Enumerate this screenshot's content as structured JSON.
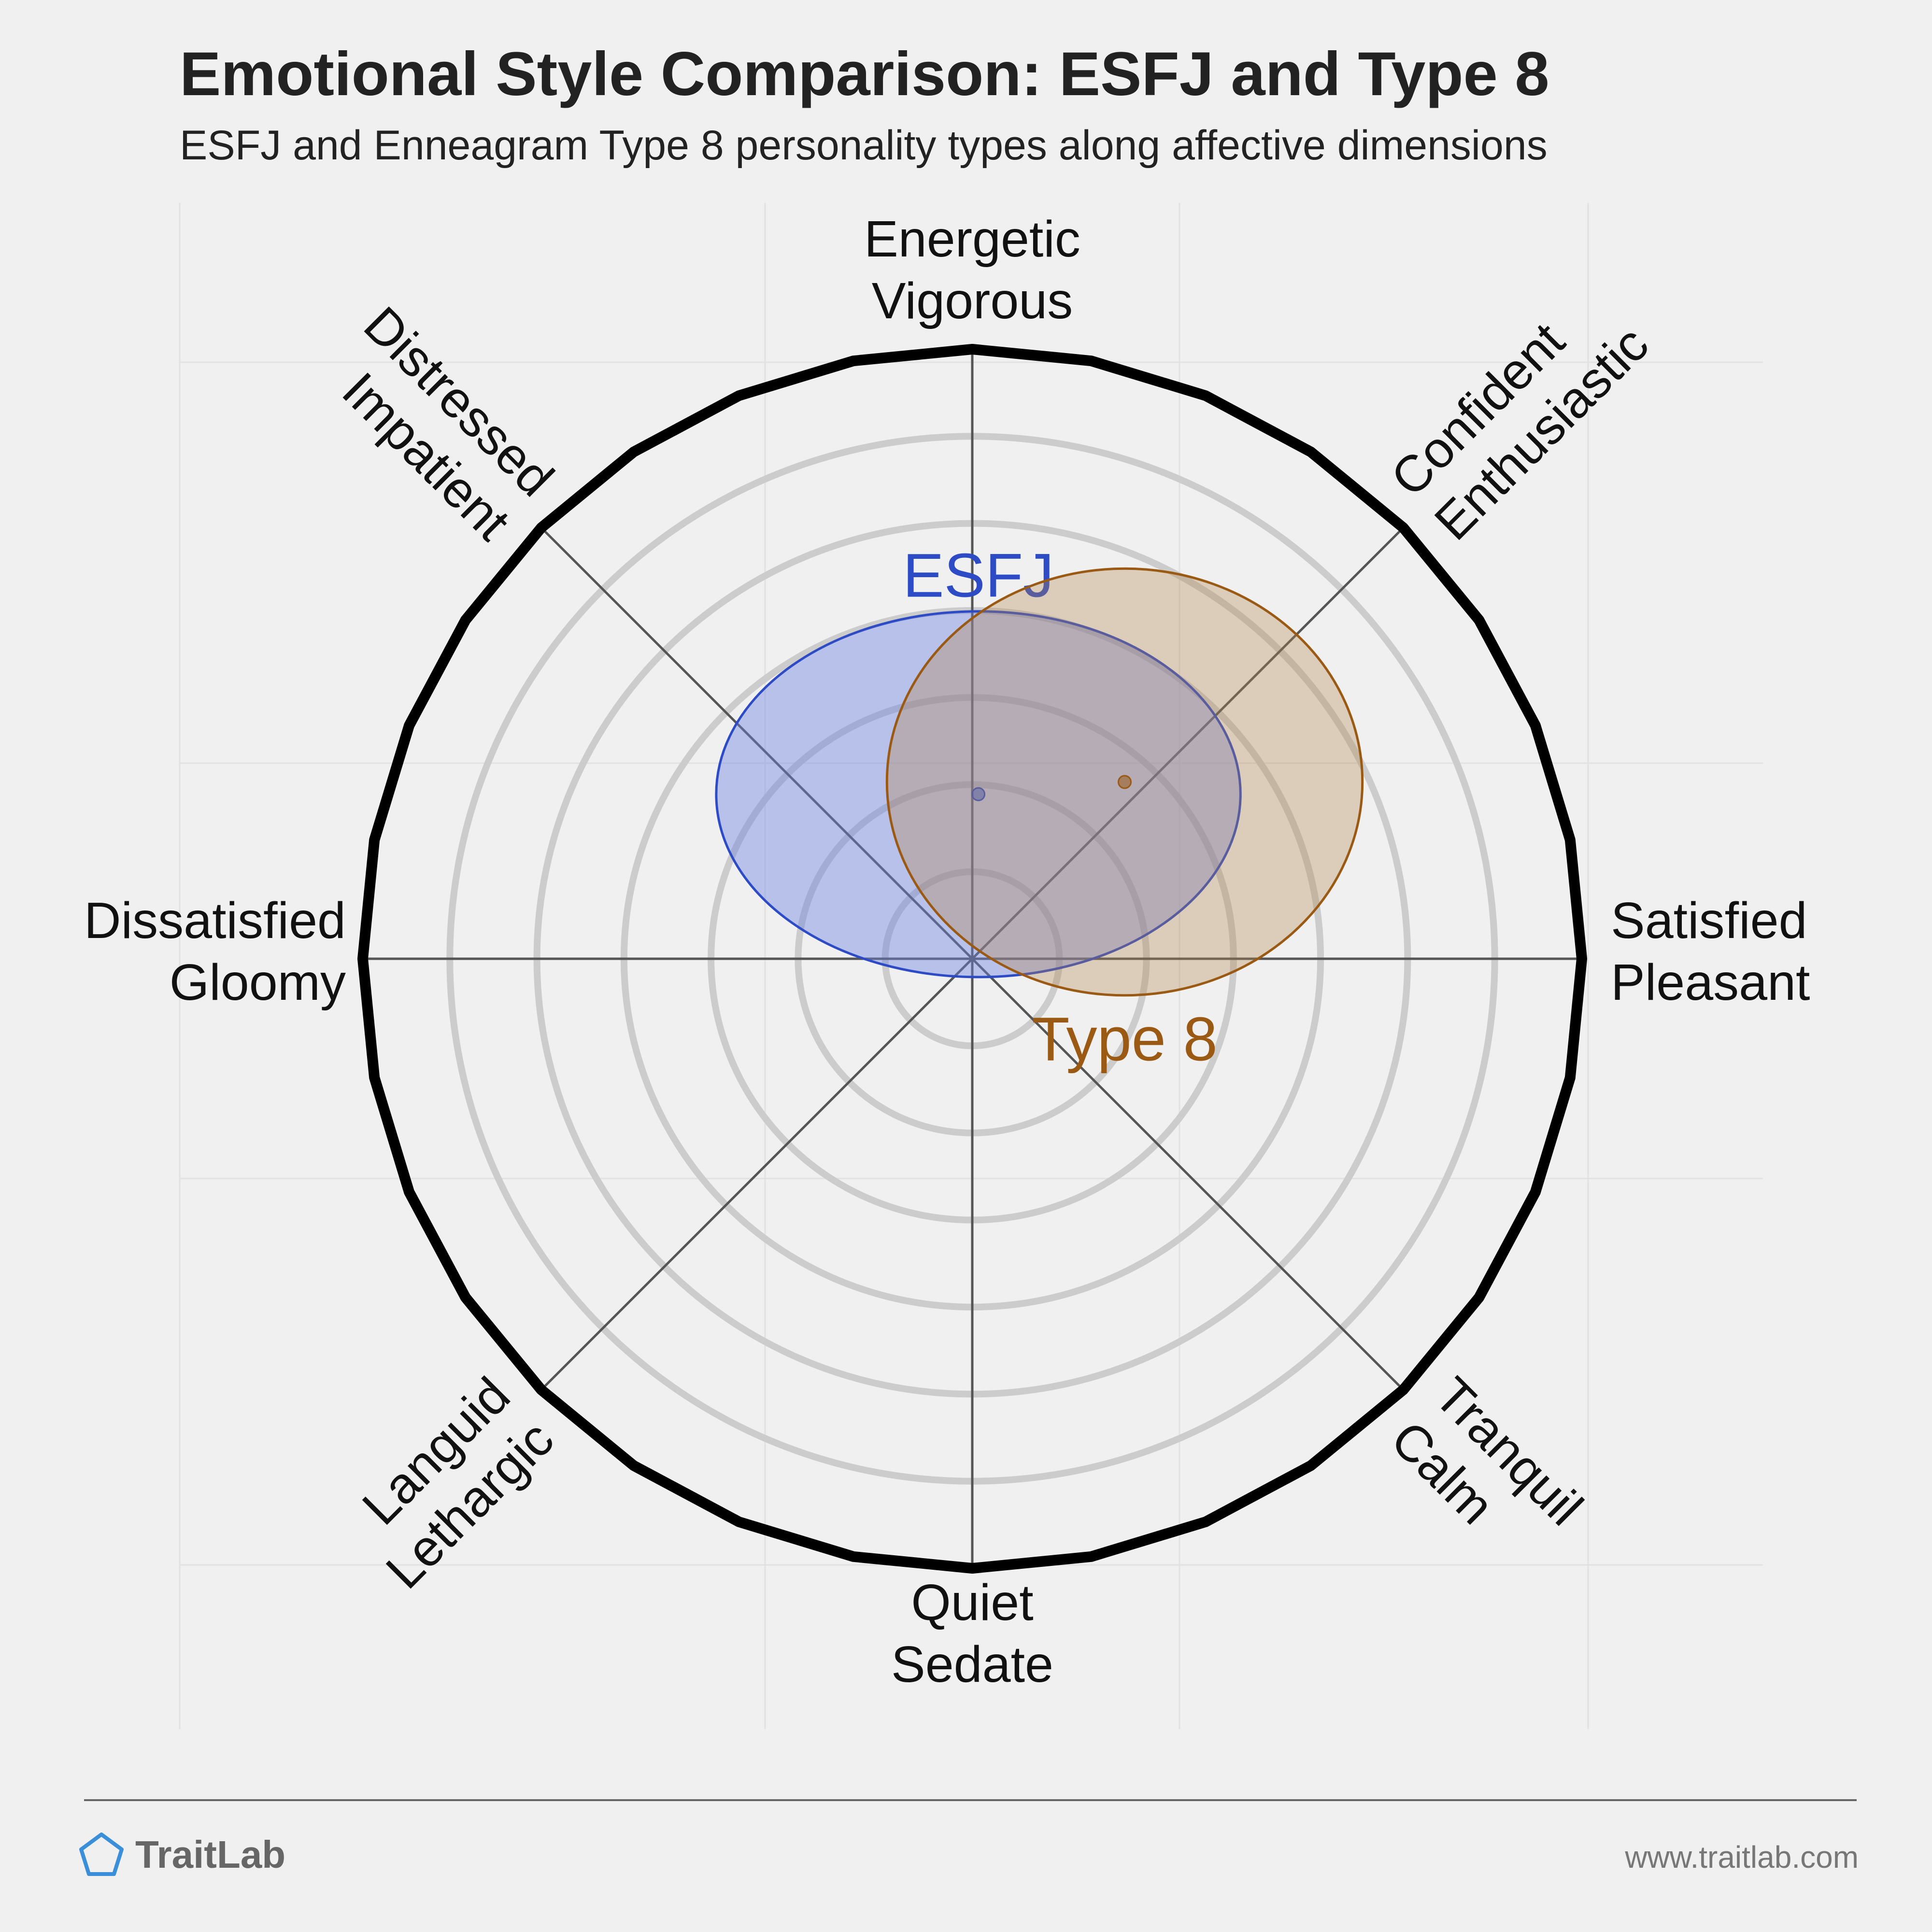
{
  "title": "Emotional Style Comparison: ESFJ and Type 8",
  "subtitle": "ESFJ and Enneagram Type 8 personality types along affective dimensions",
  "brand": {
    "name": "TraitLab",
    "icon": "pentagon-icon",
    "color": "#3b8fd9"
  },
  "footer_url": "www.traitlab.com",
  "chart_data": {
    "type": "scatter",
    "subtype": "circular affect plot with uncertainty ellipses",
    "rings": 6,
    "grid": true,
    "axes": [
      {
        "angle": 90,
        "lines": [
          "Energetic",
          "Vigorous"
        ]
      },
      {
        "angle": 45,
        "lines": [
          "Confident",
          "Enthusiastic"
        ]
      },
      {
        "angle": 0,
        "lines": [
          "Satisfied",
          "Pleasant"
        ]
      },
      {
        "angle": -45,
        "lines": [
          "Tranquil",
          "Calm"
        ]
      },
      {
        "angle": -90,
        "lines": [
          "Quiet",
          "Sedate"
        ]
      },
      {
        "angle": 225,
        "lines": [
          "Languid",
          "Lethargic"
        ]
      },
      {
        "angle": 180,
        "lines": [
          "Dissatisfied",
          "Gloomy"
        ]
      },
      {
        "angle": 135,
        "lines": [
          "Distressed",
          "Impatient"
        ]
      }
    ],
    "series": [
      {
        "name": "ESFJ",
        "x": 0.01,
        "y": 0.27,
        "rx": 0.43,
        "ry": 0.3,
        "color": "#2e4bc6",
        "fill": "rgba(106,129,226,0.42)",
        "label_pos": "top"
      },
      {
        "name": "Type 8",
        "x": 0.25,
        "y": 0.29,
        "rx": 0.39,
        "ry": 0.35,
        "color": "#9a5a14",
        "fill": "rgba(180,130,75,0.33)",
        "label_pos": "bottom"
      }
    ]
  }
}
